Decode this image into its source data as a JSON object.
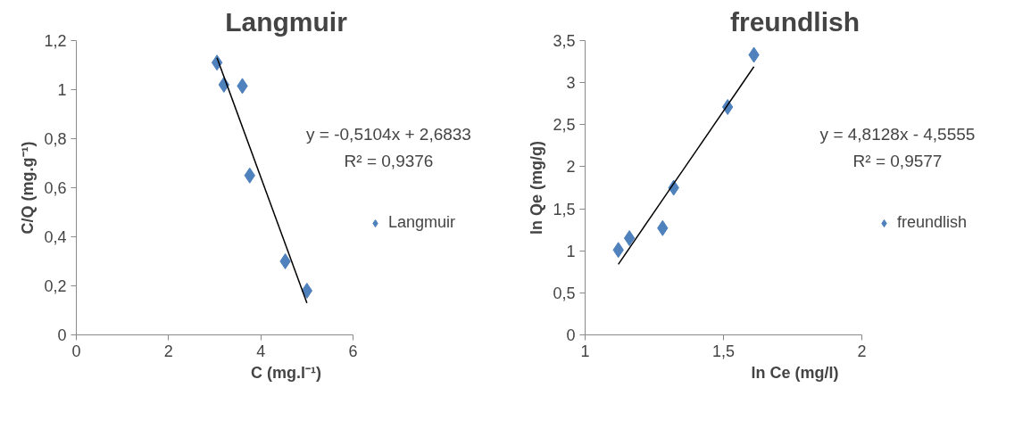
{
  "chart_data": [
    {
      "type": "scatter",
      "title": "Langmuir",
      "xlabel": "C (mg.l⁻¹)",
      "ylabel": "C/Q (mg.g⁻¹)",
      "marker": "diamond",
      "grid": false,
      "legend": "right",
      "xlim": [
        0,
        6
      ],
      "xticks": [
        0,
        2,
        4,
        6
      ],
      "ylim": [
        0,
        1.2
      ],
      "yticks": [
        0,
        {
          "value": 0.2,
          "label": "0,2"
        },
        {
          "value": 0.4,
          "label": "0,4"
        },
        {
          "value": 0.6,
          "label": "0,6"
        },
        {
          "value": 0.8,
          "label": "0,8"
        },
        1,
        {
          "value": 1.2,
          "label": "1,2"
        }
      ],
      "annotations": [
        "y = -0,5104x + 2,6833",
        "R² = 0,9376"
      ],
      "series": [
        {
          "name": "Langmuir",
          "color": "#4f81bd",
          "x": [
            3.05,
            3.2,
            3.6,
            3.76,
            4.53,
            5.0
          ],
          "values": [
            1.11,
            1.02,
            1.015,
            0.65,
            0.3,
            0.18
          ]
        },
        {
          "type": "line",
          "marker": "none",
          "color": "#000000",
          "x": [
            3.05,
            5.0
          ],
          "values": [
            1.13,
            0.13
          ]
        }
      ]
    },
    {
      "type": "scatter",
      "title": "freundlish",
      "xlabel": "ln Ce (mg/l)",
      "ylabel": "ln Qe (mg/g)",
      "marker": "diamond",
      "grid": false,
      "legend": "right",
      "xlim": [
        1,
        2
      ],
      "xticks": [
        1,
        {
          "value": 1.5,
          "label": "1,5"
        },
        2
      ],
      "ylim": [
        0,
        3.5
      ],
      "yticks": [
        0,
        {
          "value": 0.5,
          "label": "0,5"
        },
        1,
        {
          "value": 1.5,
          "label": "1,5"
        },
        2,
        {
          "value": 2.5,
          "label": "2,5"
        },
        3,
        {
          "value": 3.5,
          "label": "3,5"
        }
      ],
      "annotations": [
        "y = 4,8128x - 4,5555",
        "R² = 0,9577"
      ],
      "series": [
        {
          "name": "freundlish",
          "color": "#4f81bd",
          "x": [
            1.12,
            1.16,
            1.28,
            1.32,
            1.515,
            1.61
          ],
          "values": [
            1.01,
            1.15,
            1.27,
            1.75,
            2.71,
            3.33
          ]
        },
        {
          "type": "line",
          "marker": "none",
          "color": "#000000",
          "x": [
            1.12,
            1.61
          ],
          "values": [
            0.84,
            3.19
          ]
        }
      ]
    }
  ]
}
